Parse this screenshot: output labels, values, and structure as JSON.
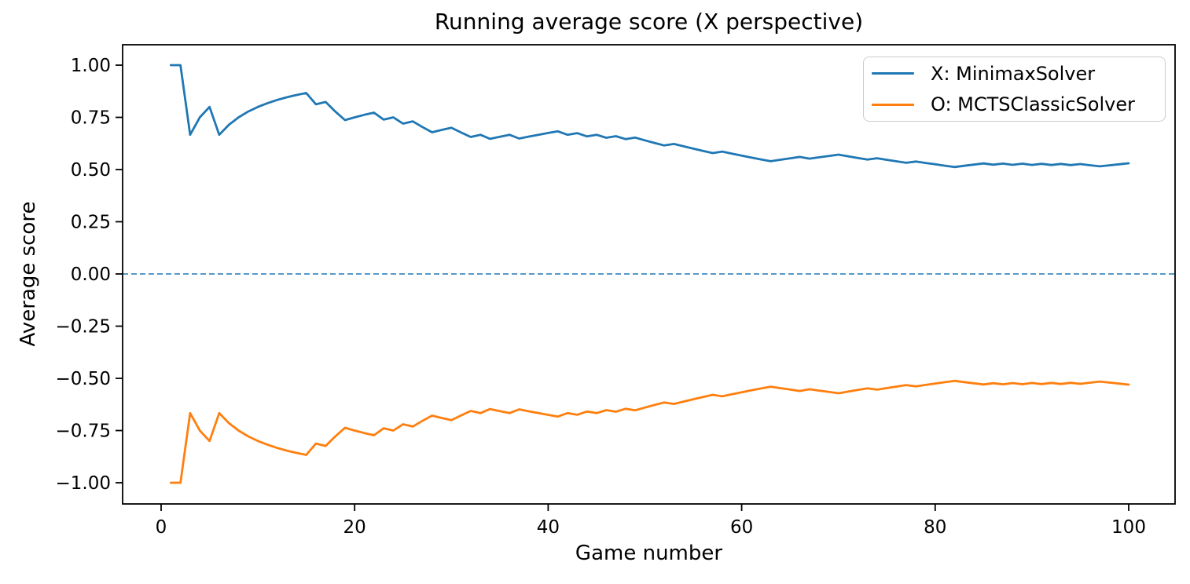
{
  "figure": {
    "title": "Running average score (X perspective)",
    "xlabel": "Game number",
    "ylabel": "Average score",
    "background_color": "#ffffff",
    "text_color": "#000000",
    "spine_color": "#000000"
  },
  "legend": {
    "position": "upper right",
    "items": [
      {
        "label": "X: MinimaxSolver",
        "color": "#1f77b4"
      },
      {
        "label": "O: MCTSClassicSolver",
        "color": "#ff7f0e"
      }
    ]
  },
  "axes": {
    "x_ticks": [
      0,
      20,
      40,
      60,
      80,
      100
    ],
    "x_tick_labels": [
      "0",
      "20",
      "40",
      "60",
      "80",
      "100"
    ],
    "y_ticks": [
      1.0,
      0.75,
      0.5,
      0.25,
      0.0,
      -0.25,
      -0.5,
      -0.75,
      -1.0
    ],
    "y_tick_labels": [
      "1.00",
      "0.75",
      "0.50",
      "0.25",
      "0.00",
      "−0.25",
      "−0.50",
      "−0.75",
      "−1.00"
    ],
    "xlim": [
      -3.95,
      104.95
    ],
    "ylim": [
      -1.1,
      1.1
    ],
    "grid": false
  },
  "chart_data": {
    "type": "line",
    "title": "Running average score (X perspective)",
    "xlabel": "Game number",
    "ylabel": "Average score",
    "xlim": [
      -3.95,
      104.95
    ],
    "ylim": [
      -1.1,
      1.1
    ],
    "legend_position": "upper right",
    "grid": false,
    "zero_line": {
      "y": 0.0,
      "style": "dashed",
      "color": "#1f77b4",
      "dash": [
        7,
        4
      ]
    },
    "x": [
      1,
      2,
      3,
      4,
      5,
      6,
      7,
      8,
      9,
      10,
      11,
      12,
      13,
      14,
      15,
      16,
      17,
      18,
      19,
      20,
      21,
      22,
      23,
      24,
      25,
      26,
      27,
      28,
      29,
      30,
      31,
      32,
      33,
      34,
      35,
      36,
      37,
      38,
      39,
      40,
      41,
      42,
      43,
      44,
      45,
      46,
      47,
      48,
      49,
      50,
      51,
      52,
      53,
      54,
      55,
      56,
      57,
      58,
      59,
      60,
      61,
      62,
      63,
      64,
      65,
      66,
      67,
      68,
      69,
      70,
      71,
      72,
      73,
      74,
      75,
      76,
      77,
      78,
      79,
      80,
      81,
      82,
      83,
      84,
      85,
      86,
      87,
      88,
      89,
      90,
      91,
      92,
      93,
      94,
      95,
      96,
      97,
      98,
      99,
      100
    ],
    "series": [
      {
        "name": "X: MinimaxSolver",
        "color": "#1f77b4",
        "values": [
          1.0,
          1.0,
          0.6667,
          0.75,
          0.8,
          0.6667,
          0.7143,
          0.75,
          0.7778,
          0.8,
          0.8182,
          0.8333,
          0.8462,
          0.8571,
          0.8667,
          0.8125,
          0.8235,
          0.7778,
          0.7368,
          0.75,
          0.7619,
          0.7727,
          0.7391,
          0.75,
          0.72,
          0.7308,
          0.7037,
          0.6786,
          0.6897,
          0.7,
          0.6774,
          0.6562,
          0.6667,
          0.6471,
          0.6571,
          0.6667,
          0.6486,
          0.6579,
          0.6667,
          0.675,
          0.6829,
          0.6667,
          0.6744,
          0.6591,
          0.6667,
          0.6522,
          0.6596,
          0.6458,
          0.6531,
          0.64,
          0.6275,
          0.6154,
          0.6226,
          0.6111,
          0.6,
          0.5893,
          0.5789,
          0.5862,
          0.5763,
          0.5667,
          0.5574,
          0.5484,
          0.5397,
          0.5469,
          0.5538,
          0.5606,
          0.5522,
          0.5588,
          0.5652,
          0.5714,
          0.5634,
          0.5556,
          0.5479,
          0.5541,
          0.5467,
          0.5395,
          0.5325,
          0.5385,
          0.5316,
          0.525,
          0.5185,
          0.5122,
          0.5181,
          0.5238,
          0.5294,
          0.5233,
          0.5287,
          0.5227,
          0.5281,
          0.5222,
          0.5275,
          0.5217,
          0.5269,
          0.5213,
          0.5263,
          0.5208,
          0.5155,
          0.5204,
          0.5253,
          0.53
        ]
      },
      {
        "name": "O: MCTSClassicSolver",
        "color": "#ff7f0e",
        "values": [
          -1.0,
          -1.0,
          -0.6667,
          -0.75,
          -0.8,
          -0.6667,
          -0.7143,
          -0.75,
          -0.7778,
          -0.8,
          -0.8182,
          -0.8333,
          -0.8462,
          -0.8571,
          -0.8667,
          -0.8125,
          -0.8235,
          -0.7778,
          -0.7368,
          -0.75,
          -0.7619,
          -0.7727,
          -0.7391,
          -0.75,
          -0.72,
          -0.7308,
          -0.7037,
          -0.6786,
          -0.6897,
          -0.7,
          -0.6774,
          -0.6562,
          -0.6667,
          -0.6471,
          -0.6571,
          -0.6667,
          -0.6486,
          -0.6579,
          -0.6667,
          -0.675,
          -0.6829,
          -0.6667,
          -0.6744,
          -0.6591,
          -0.6667,
          -0.6522,
          -0.6596,
          -0.6458,
          -0.6531,
          -0.64,
          -0.6275,
          -0.6154,
          -0.6226,
          -0.6111,
          -0.6,
          -0.5893,
          -0.5789,
          -0.5862,
          -0.5763,
          -0.5667,
          -0.5574,
          -0.5484,
          -0.5397,
          -0.5469,
          -0.5538,
          -0.5606,
          -0.5522,
          -0.5588,
          -0.5652,
          -0.5714,
          -0.5634,
          -0.5556,
          -0.5479,
          -0.5541,
          -0.5467,
          -0.5395,
          -0.5325,
          -0.5385,
          -0.5316,
          -0.525,
          -0.5185,
          -0.5122,
          -0.5181,
          -0.5238,
          -0.5294,
          -0.5233,
          -0.5287,
          -0.5227,
          -0.5281,
          -0.5222,
          -0.5275,
          -0.5217,
          -0.5269,
          -0.5213,
          -0.5263,
          -0.5208,
          -0.5155,
          -0.5204,
          -0.5253,
          -0.53
        ]
      }
    ]
  }
}
